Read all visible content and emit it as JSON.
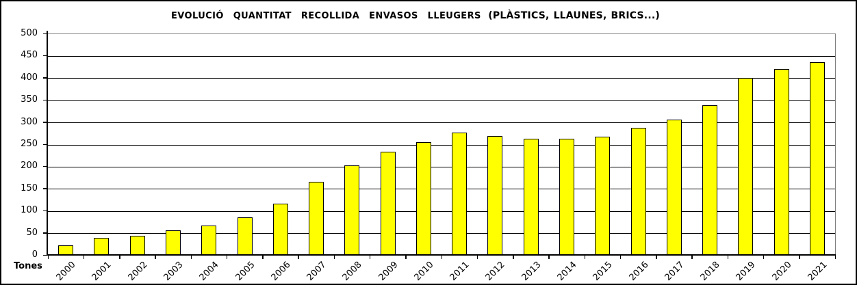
{
  "chart_data": {
    "type": "bar",
    "title_main": "EVOLUCIÓ QUANTITAT RECOLLIDA ENVASOS LLEUGERS",
    "title_paren": "(PLÀSTICS, LLAUNES, BRICS...)",
    "categories": [
      "2000",
      "2001",
      "2002",
      "2003",
      "2004",
      "2005",
      "2006",
      "2007",
      "2008",
      "2009",
      "2010",
      "2011",
      "2012",
      "2013",
      "2014",
      "2015",
      "2016",
      "2017",
      "2018",
      "2019",
      "2020",
      "2021"
    ],
    "values": [
      23,
      40,
      45,
      57,
      68,
      87,
      117,
      166,
      204,
      235,
      256,
      278,
      270,
      264,
      264,
      268,
      288,
      307,
      340,
      401,
      422,
      436
    ],
    "ylabel": "Tones",
    "xlabel": "",
    "ylim": [
      0,
      500
    ],
    "ytick_step": 50,
    "grid": true,
    "legend": "none",
    "colors": {
      "bar_fill": "#FFFF00",
      "bar_border": "#000000",
      "gridline": "#000000",
      "plot_border": "#808080",
      "axis": "#000000",
      "background": "#FFFFFF",
      "text": "#000000"
    }
  }
}
